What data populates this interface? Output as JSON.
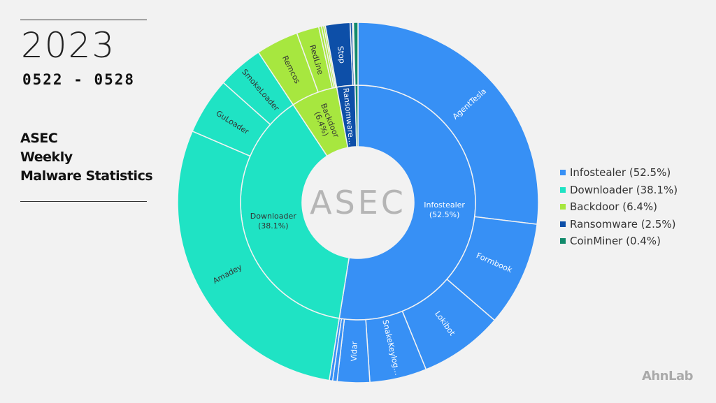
{
  "header": {
    "year": "2023",
    "date_range": "0522 - 0528",
    "title_lines": [
      "ASEC",
      "Weekly",
      "Malware Statistics"
    ]
  },
  "footer": {
    "brand": "AhnLab"
  },
  "chart_data": {
    "type": "sunburst",
    "center_logo": "ASEC",
    "unit": "%",
    "categories": [
      {
        "name": "Infostealer",
        "label": "Infostealer\n(52.5%)",
        "legend": "Infostealer (52.5%)",
        "value": 52.5,
        "color": "#3790f5",
        "text_color": "#ffffff",
        "children": [
          {
            "label": "AgentTesla",
            "value": 26.9
          },
          {
            "label": "Formbook",
            "value": 9.4
          },
          {
            "label": "Lokibot",
            "value": 7.5
          },
          {
            "label": "SnakeKeylog…",
            "value": 5.1
          },
          {
            "label": "Vidar",
            "value": 2.9
          },
          {
            "label": "",
            "value": 0.4
          },
          {
            "label": "",
            "value": 0.3
          }
        ]
      },
      {
        "name": "Downloader",
        "label": "Downloader\n(38.1%)",
        "legend": "Downloader (38.1%)",
        "value": 38.1,
        "color": "#1fe3c4",
        "text_color": "#333333",
        "children": [
          {
            "label": "Amadey",
            "value": 28.9
          },
          {
            "label": "GuLoader",
            "value": 5.1
          },
          {
            "label": "SmokeLoader",
            "value": 4.1
          }
        ]
      },
      {
        "name": "Backdoor",
        "label": "Backdoor\n(6.4%)",
        "legend": "Backdoor (6.4%)",
        "value": 6.4,
        "color": "#a7e73f",
        "text_color": "#333333",
        "children": [
          {
            "label": "Remcos",
            "value": 3.8
          },
          {
            "label": "RedLine",
            "value": 2.0
          },
          {
            "label": "",
            "value": 0.25
          },
          {
            "label": "",
            "value": 0.2
          },
          {
            "label": "",
            "value": 0.15
          }
        ]
      },
      {
        "name": "Ransomware",
        "label": "Ransomware…",
        "legend": "Ransomware (2.5%)",
        "value": 2.5,
        "color": "#0d4fa8",
        "text_color": "#ffffff",
        "children": [
          {
            "label": "Stop",
            "value": 2.2
          },
          {
            "label": "",
            "value": 0.2
          },
          {
            "label": "",
            "value": 0.1
          }
        ]
      },
      {
        "name": "CoinMiner",
        "label": "",
        "legend": "CoinMiner (0.4%)",
        "value": 0.4,
        "color": "#118a6b",
        "text_color": "#ffffff",
        "children": [
          {
            "label": "",
            "value": 0.4
          }
        ]
      }
    ]
  }
}
